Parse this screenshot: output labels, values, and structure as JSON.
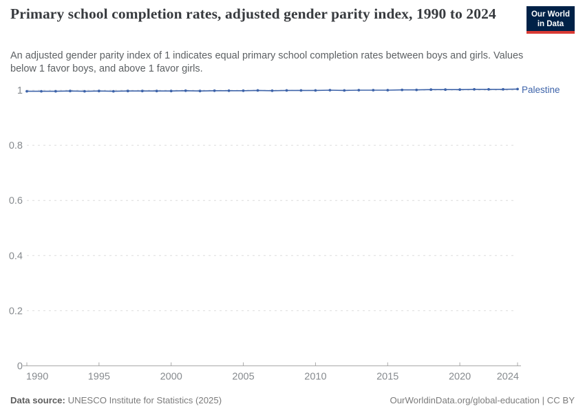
{
  "header": {
    "title": "Primary school completion rates, adjusted gender parity index, 1990 to 2024",
    "subtitle": "An adjusted gender parity index of 1 indicates equal primary school completion rates between boys and girls. Values below 1 favor boys, and above 1 favor girls.",
    "logo": {
      "line1": "Our World",
      "line2": "in Data",
      "bg_color": "#002147",
      "underline_color": "#d93a34"
    }
  },
  "chart_data": {
    "type": "line",
    "title": "Primary school completion rates, adjusted gender parity index, 1990 to 2024",
    "xlabel": "",
    "ylabel": "",
    "xlim": [
      1990,
      2024
    ],
    "ylim": [
      0,
      1
    ],
    "grid": true,
    "grid_style": "dashed",
    "legend_position": "end-of-line",
    "x": [
      1990,
      1991,
      1992,
      1993,
      1994,
      1995,
      1996,
      1997,
      1998,
      1999,
      2000,
      2001,
      2002,
      2003,
      2004,
      2005,
      2006,
      2007,
      2008,
      2009,
      2010,
      2011,
      2012,
      2013,
      2014,
      2015,
      2016,
      2017,
      2018,
      2019,
      2020,
      2021,
      2022,
      2023,
      2024
    ],
    "series": [
      {
        "name": "Palestine",
        "color": "#3d63a9",
        "values": [
          0.996,
          0.996,
          0.996,
          0.997,
          0.996,
          0.997,
          0.996,
          0.997,
          0.997,
          0.997,
          0.997,
          0.998,
          0.997,
          0.998,
          0.998,
          0.998,
          0.999,
          0.998,
          0.999,
          0.999,
          0.999,
          1.0,
          0.999,
          1.0,
          1.0,
          1.0,
          1.001,
          1.001,
          1.002,
          1.002,
          1.002,
          1.003,
          1.003,
          1.003,
          1.004
        ]
      }
    ],
    "yticks": [
      0,
      0.2,
      0.4,
      0.6,
      0.8,
      1
    ],
    "ytick_labels": [
      "0",
      "0.2",
      "0.4",
      "0.6",
      "0.8",
      "1"
    ],
    "xticks": [
      1990,
      1995,
      2000,
      2005,
      2010,
      2015,
      2020,
      2024
    ],
    "xtick_labels": [
      "1990",
      "1995",
      "2000",
      "2005",
      "2010",
      "2015",
      "2020",
      "2024"
    ]
  },
  "footer": {
    "datasource_label": "Data source:",
    "datasource_value": "UNESCO Institute for Statistics (2025)",
    "credit": "OurWorldinData.org/global-education | CC BY"
  },
  "colors": {
    "accent": "#3d63a9",
    "grid": "#dcdcdc",
    "axis": "#a8a8a8",
    "tick_text": "#878b8f",
    "title_text": "#383b3f",
    "subtitle_text": "#5c6063",
    "footer_text": "#7b7b7b"
  }
}
